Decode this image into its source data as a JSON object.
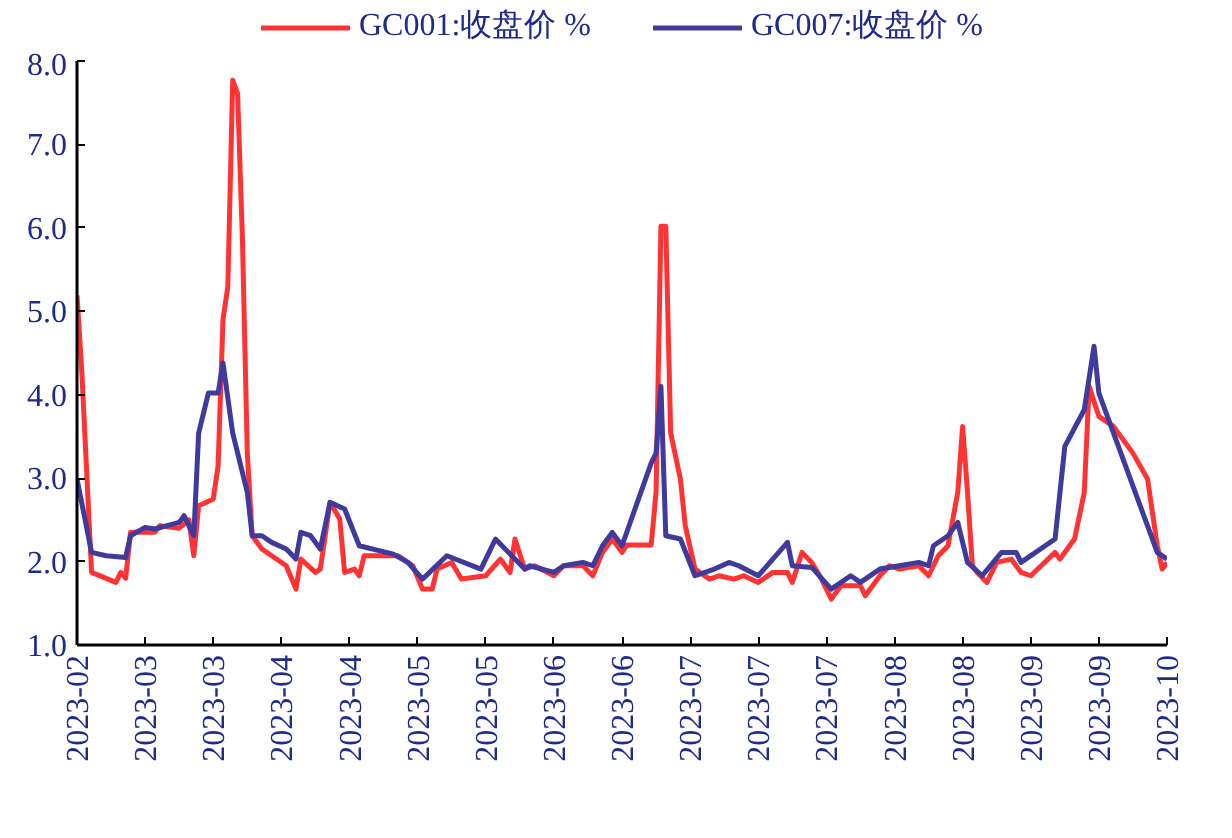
{
  "chart_data": {
    "type": "line",
    "xlim": [
      "2023-02-25",
      "2023-10-07"
    ],
    "xticks": [
      {
        "value": "2023-02-25",
        "label": "2023-02"
      },
      {
        "value": "2023-03-11",
        "label": "2023-03"
      },
      {
        "value": "2023-03-25",
        "label": "2023-03"
      },
      {
        "value": "2023-04-08",
        "label": "2023-04"
      },
      {
        "value": "2023-04-22",
        "label": "2023-04"
      },
      {
        "value": "2023-05-06",
        "label": "2023-05"
      },
      {
        "value": "2023-05-20",
        "label": "2023-05"
      },
      {
        "value": "2023-06-03",
        "label": "2023-06"
      },
      {
        "value": "2023-06-17",
        "label": "2023-06"
      },
      {
        "value": "2023-07-01",
        "label": "2023-07"
      },
      {
        "value": "2023-07-15",
        "label": "2023-07"
      },
      {
        "value": "2023-07-29",
        "label": "2023-07"
      },
      {
        "value": "2023-08-12",
        "label": "2023-08"
      },
      {
        "value": "2023-08-26",
        "label": "2023-08"
      },
      {
        "value": "2023-09-09",
        "label": "2023-09"
      },
      {
        "value": "2023-09-23",
        "label": "2023-09"
      },
      {
        "value": "2023-10-07",
        "label": "2023-10"
      }
    ],
    "ylim": [
      1,
      8
    ],
    "yticks": [
      {
        "value": 1,
        "label": "1.0"
      },
      {
        "value": 2,
        "label": "2.0"
      },
      {
        "value": 3,
        "label": "3.0"
      },
      {
        "value": 4,
        "label": "4.0"
      },
      {
        "value": 5,
        "label": "5.0"
      },
      {
        "value": 6,
        "label": "6.0"
      },
      {
        "value": 7,
        "label": "7.0"
      },
      {
        "value": 8,
        "label": "8.0"
      }
    ],
    "grid": false,
    "legend": "top",
    "marker": "none",
    "line_style": "solid",
    "series": [
      {
        "name": "GC001:收盘价 %",
        "color": "#ff3333",
        "x": [
          "2023-02-25",
          "2023-02-26",
          "2023-02-28",
          "2023-03-05",
          "2023-03-06",
          "2023-03-07",
          "2023-03-08",
          "2023-03-13",
          "2023-03-14",
          "2023-03-18",
          "2023-03-20",
          "2023-03-21",
          "2023-03-22",
          "2023-03-25",
          "2023-03-26",
          "2023-03-27",
          "2023-03-28",
          "2023-03-29",
          "2023-03-30",
          "2023-03-31",
          "2023-04-01",
          "2023-04-02",
          "2023-04-04",
          "2023-04-09",
          "2023-04-11",
          "2023-04-12",
          "2023-04-15",
          "2023-04-16",
          "2023-04-18",
          "2023-04-20",
          "2023-04-21",
          "2023-04-23",
          "2023-04-24",
          "2023-04-25",
          "2023-05-02",
          "2023-05-05",
          "2023-05-07",
          "2023-05-09",
          "2023-05-10",
          "2023-05-13",
          "2023-05-15",
          "2023-05-20",
          "2023-05-23",
          "2023-05-25",
          "2023-05-26",
          "2023-05-28",
          "2023-05-30",
          "2023-06-03",
          "2023-06-05",
          "2023-06-09",
          "2023-06-11",
          "2023-06-13",
          "2023-06-14",
          "2023-06-15",
          "2023-06-17",
          "2023-06-18",
          "2023-06-23",
          "2023-06-24",
          "2023-06-25",
          "2023-06-26",
          "2023-06-27",
          "2023-06-29",
          "2023-06-30",
          "2023-07-02",
          "2023-07-05",
          "2023-07-07",
          "2023-07-10",
          "2023-07-12",
          "2023-07-15",
          "2023-07-18",
          "2023-07-21",
          "2023-07-22",
          "2023-07-24",
          "2023-07-26",
          "2023-07-28",
          "2023-07-30",
          "2023-08-01",
          "2023-08-05",
          "2023-08-06",
          "2023-08-09",
          "2023-08-11",
          "2023-08-13",
          "2023-08-17",
          "2023-08-19",
          "2023-08-21",
          "2023-08-23",
          "2023-08-25",
          "2023-08-26",
          "2023-08-27",
          "2023-08-28",
          "2023-08-29",
          "2023-08-31",
          "2023-09-02",
          "2023-09-05",
          "2023-09-07",
          "2023-09-09",
          "2023-09-14",
          "2023-09-15",
          "2023-09-18",
          "2023-09-20",
          "2023-09-21",
          "2023-09-23",
          "2023-09-26",
          "2023-09-30",
          "2023-10-03",
          "2023-10-05",
          "2023-10-06",
          "2023-10-07"
        ],
        "values": [
          5.19,
          4.26,
          1.87,
          1.75,
          1.87,
          1.8,
          2.35,
          2.35,
          2.43,
          2.4,
          2.5,
          2.07,
          2.67,
          2.75,
          3.15,
          4.9,
          5.3,
          7.77,
          7.61,
          5.86,
          3.3,
          2.31,
          2.15,
          1.95,
          1.67,
          2.03,
          1.87,
          1.91,
          2.71,
          2.51,
          1.87,
          1.91,
          1.83,
          2.07,
          2.07,
          1.95,
          1.67,
          1.67,
          1.91,
          1.99,
          1.79,
          1.83,
          2.03,
          1.87,
          2.27,
          1.91,
          1.95,
          1.83,
          1.95,
          1.95,
          1.83,
          2.11,
          2.19,
          2.27,
          2.11,
          2.2,
          2.2,
          2.83,
          6.02,
          6.02,
          3.54,
          2.99,
          2.43,
          1.91,
          1.79,
          1.83,
          1.79,
          1.83,
          1.75,
          1.87,
          1.87,
          1.75,
          2.11,
          1.99,
          1.79,
          1.55,
          1.71,
          1.71,
          1.59,
          1.83,
          1.95,
          1.91,
          1.95,
          1.83,
          2.07,
          2.19,
          2.83,
          3.62,
          2.83,
          1.95,
          1.87,
          1.75,
          1.99,
          2.03,
          1.87,
          1.83,
          2.11,
          2.03,
          2.27,
          2.83,
          4.1,
          3.74,
          3.62,
          3.3,
          2.99,
          2.19,
          1.91,
          1.99
        ]
      },
      {
        "name": "GC007:收盘价 %",
        "color": "#3f3a9c",
        "x": [
          "2023-02-25",
          "2023-02-28",
          "2023-03-03",
          "2023-03-07",
          "2023-03-08",
          "2023-03-11",
          "2023-03-13",
          "2023-03-18",
          "2023-03-19",
          "2023-03-21",
          "2023-03-22",
          "2023-03-24",
          "2023-03-26",
          "2023-03-27",
          "2023-03-29",
          "2023-04-01",
          "2023-04-02",
          "2023-04-04",
          "2023-04-06",
          "2023-04-09",
          "2023-04-11",
          "2023-04-12",
          "2023-04-14",
          "2023-04-16",
          "2023-04-18",
          "2023-04-21",
          "2023-04-24",
          "2023-05-01",
          "2023-05-04",
          "2023-05-07",
          "2023-05-12",
          "2023-05-19",
          "2023-05-22",
          "2023-05-26",
          "2023-05-28",
          "2023-05-29",
          "2023-06-03",
          "2023-06-05",
          "2023-06-09",
          "2023-06-11",
          "2023-06-13",
          "2023-06-15",
          "2023-06-17",
          "2023-06-23",
          "2023-06-24",
          "2023-06-25",
          "2023-06-26",
          "2023-06-29",
          "2023-07-02",
          "2023-07-06",
          "2023-07-09",
          "2023-07-11",
          "2023-07-15",
          "2023-07-18",
          "2023-07-21",
          "2023-07-22",
          "2023-07-26",
          "2023-07-30",
          "2023-08-03",
          "2023-08-05",
          "2023-08-09",
          "2023-08-13",
          "2023-08-17",
          "2023-08-19",
          "2023-08-20",
          "2023-08-23",
          "2023-08-25",
          "2023-08-27",
          "2023-08-30",
          "2023-09-03",
          "2023-09-06",
          "2023-09-07",
          "2023-09-14",
          "2023-09-16",
          "2023-09-20",
          "2023-09-22",
          "2023-09-23",
          "2023-10-05",
          "2023-10-07"
        ],
        "values": [
          2.99,
          2.11,
          2.07,
          2.05,
          2.31,
          2.41,
          2.39,
          2.47,
          2.55,
          2.31,
          3.54,
          4.02,
          4.02,
          4.38,
          3.54,
          2.83,
          2.31,
          2.31,
          2.23,
          2.15,
          2.03,
          2.35,
          2.31,
          2.15,
          2.71,
          2.63,
          2.19,
          2.09,
          1.99,
          1.79,
          2.07,
          1.91,
          2.27,
          2.03,
          1.91,
          1.95,
          1.87,
          1.95,
          1.99,
          1.95,
          2.19,
          2.35,
          2.19,
          3.18,
          3.3,
          4.1,
          2.31,
          2.27,
          1.83,
          1.91,
          1.99,
          1.95,
          1.83,
          2.03,
          2.23,
          1.95,
          1.93,
          1.67,
          1.83,
          1.75,
          1.91,
          1.95,
          1.99,
          1.95,
          2.19,
          2.31,
          2.47,
          1.99,
          1.83,
          2.11,
          2.11,
          1.99,
          2.27,
          3.38,
          3.82,
          4.58,
          4.02,
          2.11,
          2.03
        ]
      }
    ]
  }
}
